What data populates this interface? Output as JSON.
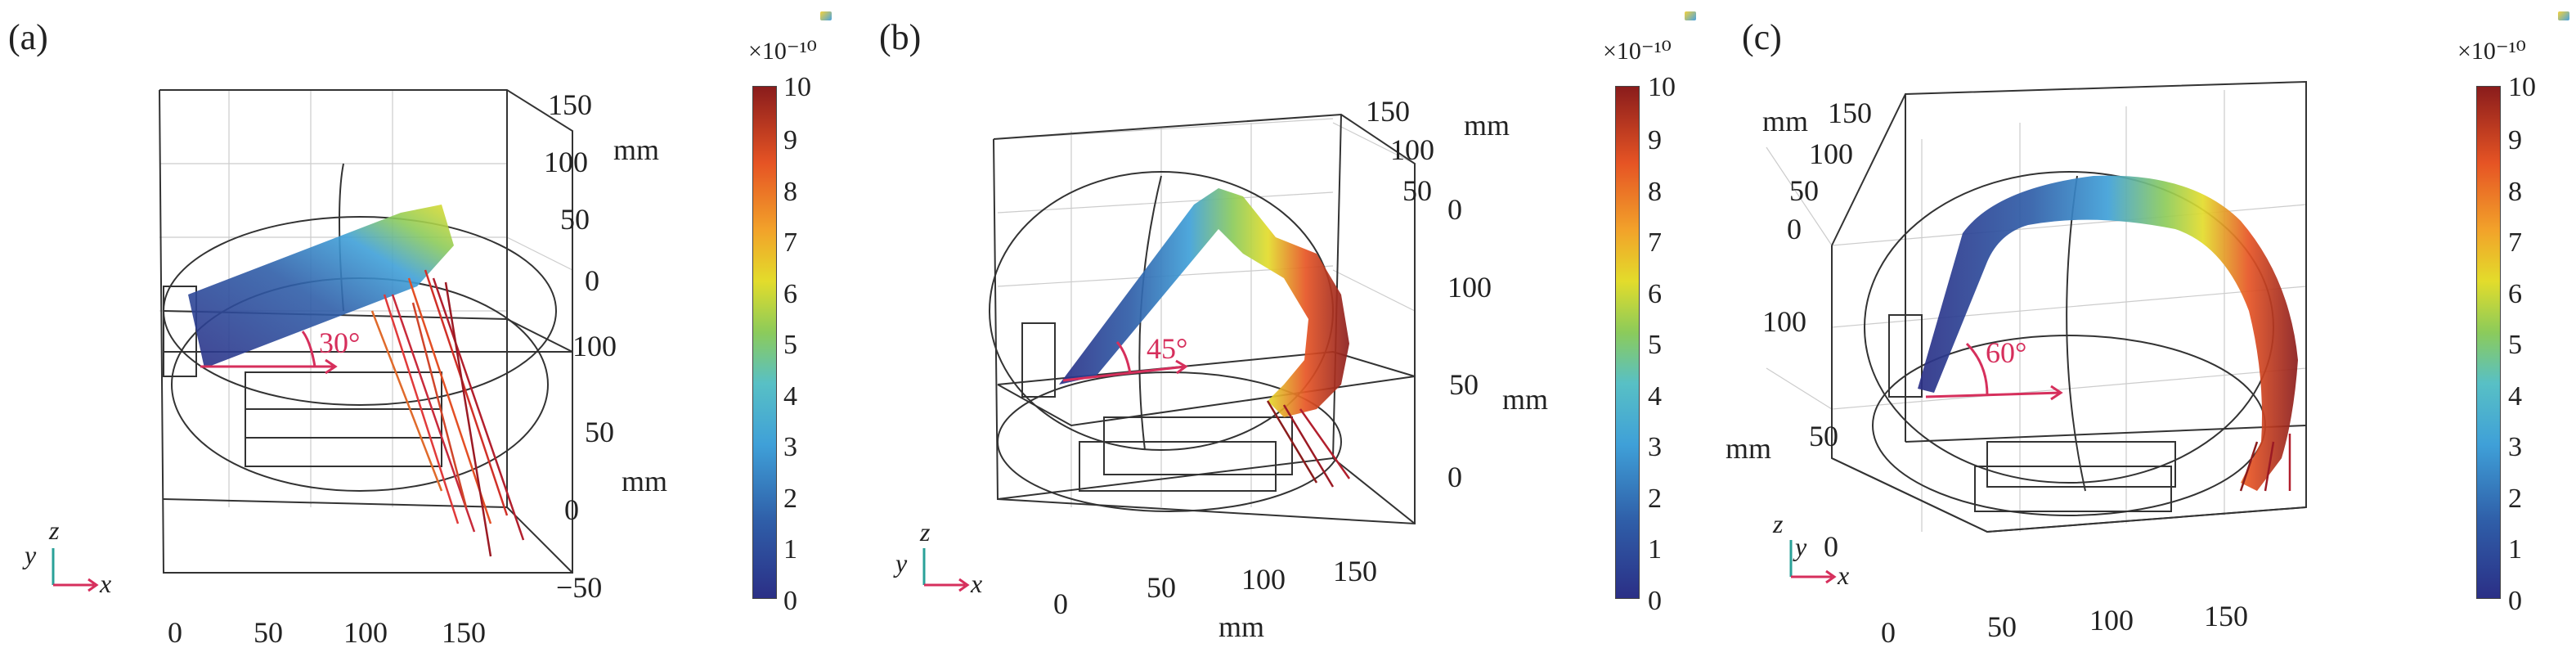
{
  "figure": {
    "panels": [
      {
        "label": "(a)",
        "angle": "30°",
        "colorbar": {
          "scale": "×10⁻¹⁰",
          "ticks": [
            "10",
            "9",
            "8",
            "7",
            "6",
            "5",
            "4",
            "3",
            "2",
            "1",
            "0"
          ]
        },
        "x_ticks": [
          "0",
          "50",
          "100",
          "150"
        ],
        "y_ticks": [
          "100",
          "50",
          "0",
          "−50"
        ],
        "y_unit": "mm",
        "z_ticks": [
          "150",
          "100",
          "50",
          "0"
        ],
        "z_unit": "mm",
        "axes": {
          "x": "x",
          "y": "y",
          "z": "z"
        }
      },
      {
        "label": "(b)",
        "angle": "45°",
        "colorbar": {
          "scale": "×10⁻¹⁰",
          "ticks": [
            "10",
            "9",
            "8",
            "7",
            "6",
            "5",
            "4",
            "3",
            "2",
            "1",
            "0"
          ]
        },
        "x_ticks": [
          "0",
          "50",
          "100",
          "150"
        ],
        "x_unit": "mm",
        "y_ticks": [
          "100",
          "50",
          "0"
        ],
        "y_unit": "mm",
        "z_ticks": [
          "150",
          "100",
          "50",
          "0"
        ],
        "z_unit": "mm",
        "axes": {
          "x": "x",
          "y": "y",
          "z": "z"
        }
      },
      {
        "label": "(c)",
        "angle": "60°",
        "colorbar": {
          "scale": "×10⁻¹⁰",
          "ticks": [
            "10",
            "9",
            "8",
            "7",
            "6",
            "5",
            "4",
            "3",
            "2",
            "1",
            "0"
          ]
        },
        "x_ticks": [
          "0",
          "50",
          "100",
          "150"
        ],
        "y_ticks": [
          "100",
          "50",
          "0"
        ],
        "y_unit": "mm",
        "z_ticks": [
          "150",
          "100",
          "50",
          "0"
        ],
        "z_unit": "mm",
        "axes": {
          "x": "x",
          "y": "y",
          "z": "z"
        }
      }
    ],
    "colors": {
      "colormap": [
        "#2b2f86",
        "#3fa0d8",
        "#8ccb5a",
        "#e3dc2b",
        "#e65424",
        "#8a1c1c"
      ],
      "angle_marker": "#d62f5c"
    }
  }
}
